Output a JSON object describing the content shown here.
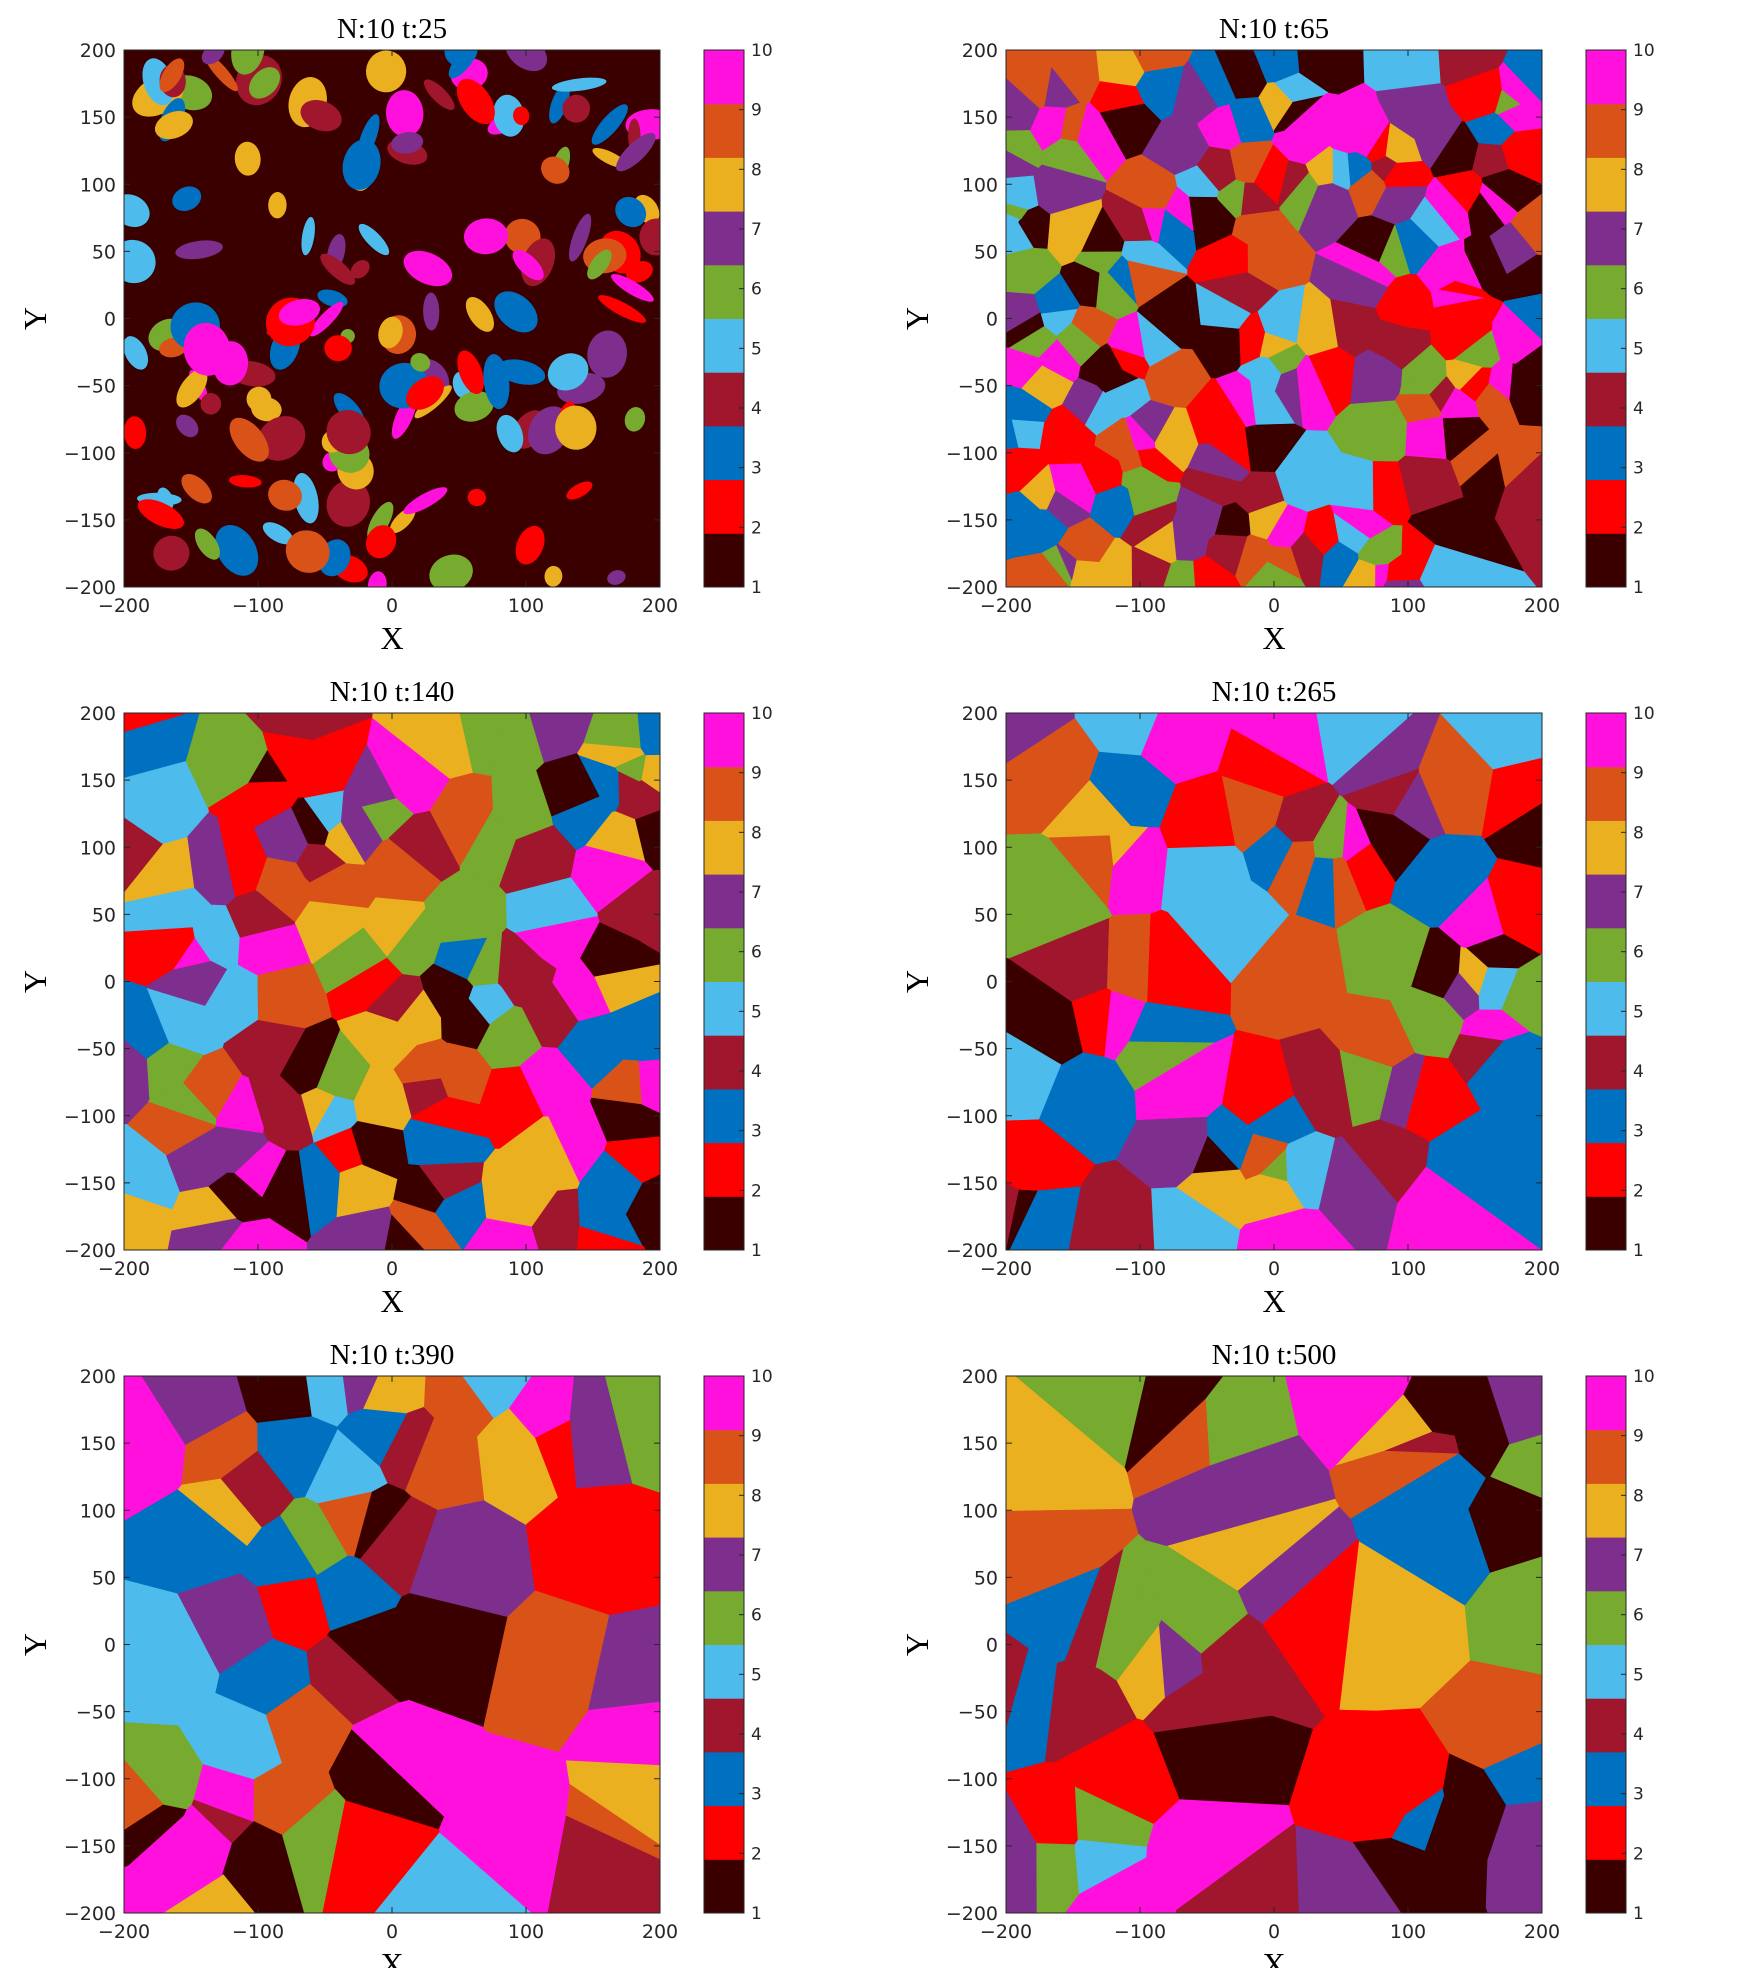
{
  "palette": [
    "#3a0000",
    "#ff0000",
    "#0070c0",
    "#a0162d",
    "#4dbbec",
    "#76ab2f",
    "#7e2f8e",
    "#ebb020",
    "#d95319",
    "#ff10dc"
  ],
  "chart_data": [
    {
      "type": "heatmap",
      "title": "N:10    t:25",
      "xlabel": "X",
      "ylabel": "Y",
      "xlim": [
        -200,
        200
      ],
      "ylim": [
        -200,
        200
      ],
      "xticks": [
        "−200",
        "−100",
        "0",
        "100",
        "200"
      ],
      "yticks": [
        "200",
        "150",
        "100",
        "50",
        "0",
        "−50",
        "−100",
        "−150",
        "−200"
      ],
      "colorbar": {
        "min": 1,
        "max": 10,
        "ticks": [
          "1",
          "2",
          "3",
          "4",
          "5",
          "6",
          "7",
          "8",
          "9",
          "10"
        ]
      },
      "grain_count": 150,
      "background_value": 1,
      "seed": 11
    },
    {
      "type": "heatmap",
      "title": "N:10    t:65",
      "xlabel": "X",
      "ylabel": "Y",
      "xlim": [
        -200,
        200
      ],
      "ylim": [
        -200,
        200
      ],
      "xticks": [
        "−200",
        "−100",
        "0",
        "100",
        "200"
      ],
      "yticks": [
        "200",
        "150",
        "100",
        "50",
        "0",
        "−50",
        "−100",
        "−150",
        "−200"
      ],
      "colorbar": {
        "min": 1,
        "max": 10,
        "ticks": [
          "1",
          "2",
          "3",
          "4",
          "5",
          "6",
          "7",
          "8",
          "9",
          "10"
        ]
      },
      "grain_count": 230,
      "background_value": null,
      "seed": 23
    },
    {
      "type": "heatmap",
      "title": "N:10    t:140",
      "xlabel": "X",
      "ylabel": "Y",
      "xlim": [
        -200,
        200
      ],
      "ylim": [
        -200,
        200
      ],
      "xticks": [
        "−200",
        "−100",
        "0",
        "100",
        "200"
      ],
      "yticks": [
        "200",
        "150",
        "100",
        "50",
        "0",
        "−50",
        "−100",
        "−150",
        "−200"
      ],
      "colorbar": {
        "min": 1,
        "max": 10,
        "ticks": [
          "1",
          "2",
          "3",
          "4",
          "5",
          "6",
          "7",
          "8",
          "9",
          "10"
        ]
      },
      "grain_count": 140,
      "background_value": null,
      "seed": 37
    },
    {
      "type": "heatmap",
      "title": "N:10    t:265",
      "xlabel": "X",
      "ylabel": "Y",
      "xlim": [
        -200,
        200
      ],
      "ylim": [
        -200,
        200
      ],
      "xticks": [
        "−200",
        "−100",
        "0",
        "100",
        "200"
      ],
      "yticks": [
        "200",
        "150",
        "100",
        "50",
        "0",
        "−50",
        "−100",
        "−150",
        "−200"
      ],
      "colorbar": {
        "min": 1,
        "max": 10,
        "ticks": [
          "1",
          "2",
          "3",
          "4",
          "5",
          "6",
          "7",
          "8",
          "9",
          "10"
        ]
      },
      "grain_count": 85,
      "background_value": null,
      "seed": 41
    },
    {
      "type": "heatmap",
      "title": "N:10    t:390",
      "xlabel": "X",
      "ylabel": "Y",
      "xlim": [
        -200,
        200
      ],
      "ylim": [
        -200,
        200
      ],
      "xticks": [
        "−200",
        "−100",
        "0",
        "100",
        "200"
      ],
      "yticks": [
        "200",
        "150",
        "100",
        "50",
        "0",
        "−50",
        "−100",
        "−150",
        "−200"
      ],
      "colorbar": {
        "min": 1,
        "max": 10,
        "ticks": [
          "1",
          "2",
          "3",
          "4",
          "5",
          "6",
          "7",
          "8",
          "9",
          "10"
        ]
      },
      "grain_count": 62,
      "background_value": null,
      "seed": 53
    },
    {
      "type": "heatmap",
      "title": "N:10    t:500",
      "xlabel": "X",
      "ylabel": "Y",
      "xlim": [
        -200,
        200
      ],
      "ylim": [
        -200,
        200
      ],
      "xticks": [
        "−200",
        "−100",
        "0",
        "100",
        "200"
      ],
      "yticks": [
        "200",
        "150",
        "100",
        "50",
        "0",
        "−50",
        "−100",
        "−150",
        "−200"
      ],
      "colorbar": {
        "min": 1,
        "max": 10,
        "ticks": [
          "1",
          "2",
          "3",
          "4",
          "5",
          "6",
          "7",
          "8",
          "9",
          "10"
        ]
      },
      "grain_count": 55,
      "background_value": null,
      "seed": 67
    }
  ]
}
